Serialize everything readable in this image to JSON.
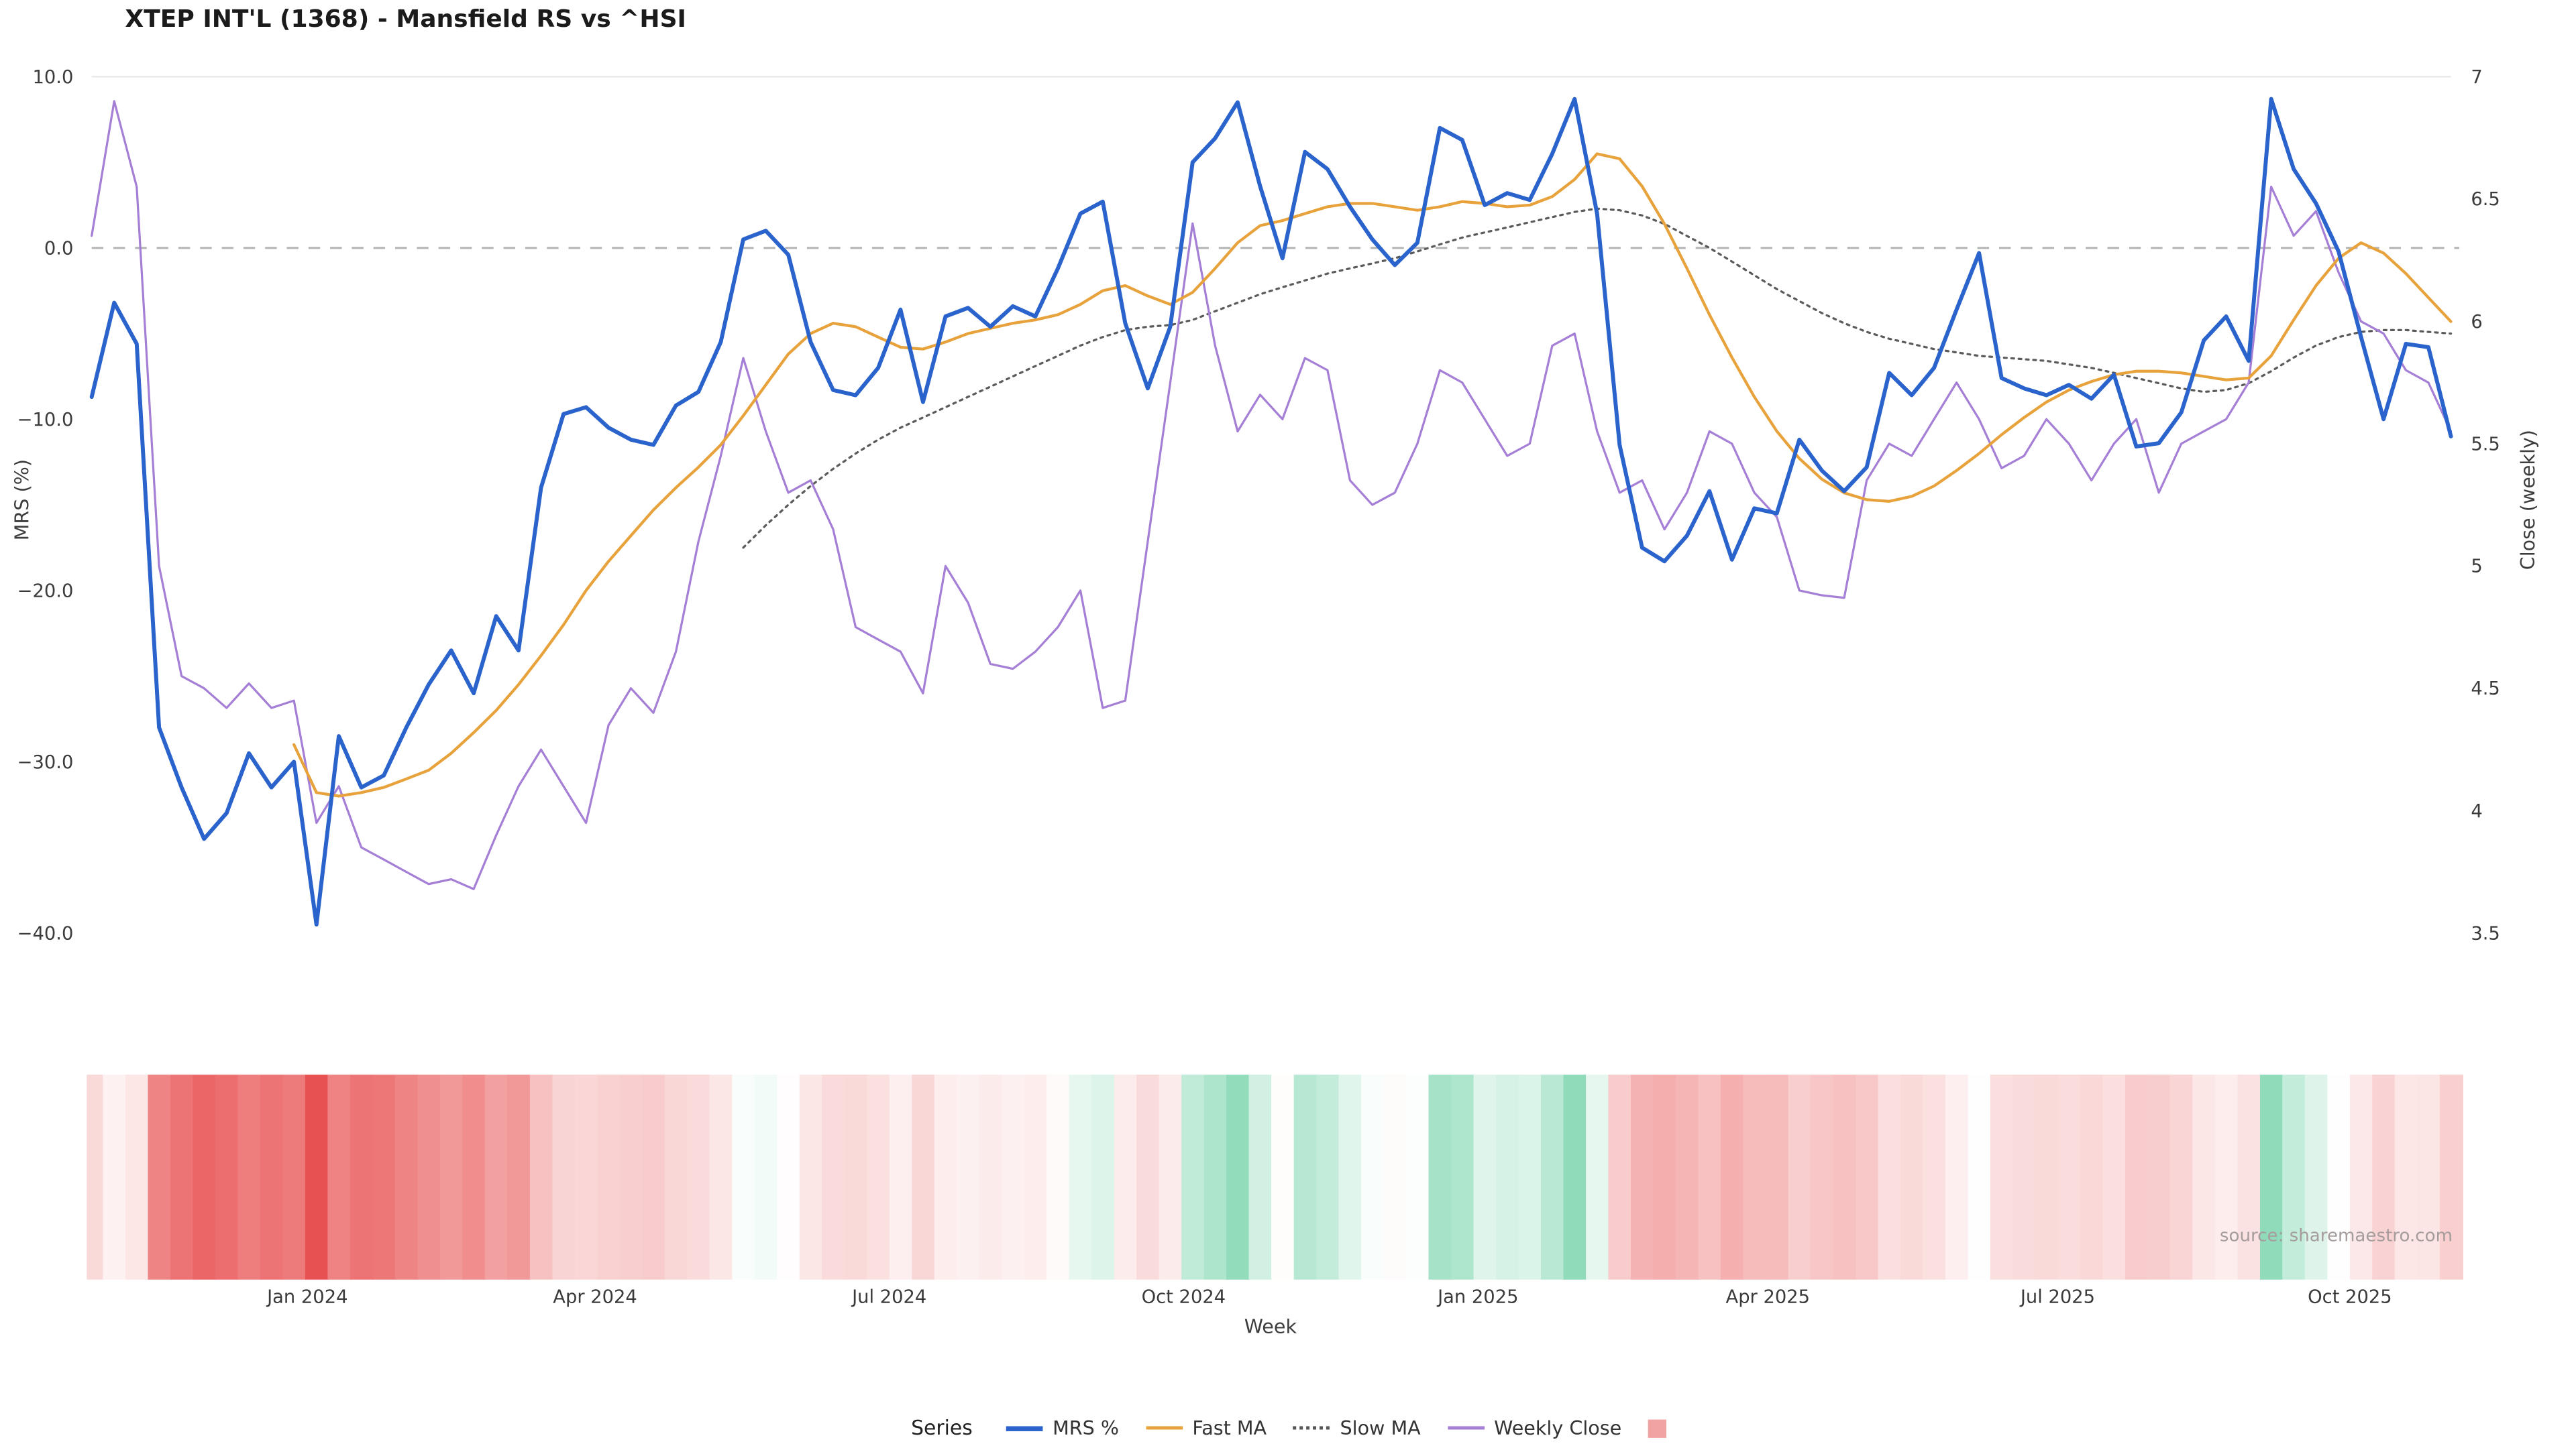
{
  "chart": {
    "title": "XTEP INT'L (1368) - Mansfield RS vs ^HSI",
    "x_label": "Week",
    "y_left_label": "MRS (%)",
    "y_right_label": "Close (weekly)",
    "source": "source: sharemaestro.com",
    "legend_title": "Series"
  },
  "chart_data": {
    "type": "line",
    "n_weeks": 106,
    "x_axis": {
      "label": "Week",
      "ticks": [
        {
          "week": 9.6,
          "label": "Jan 2024"
        },
        {
          "week": 22.4,
          "label": "Apr 2024"
        },
        {
          "week": 35.5,
          "label": "Jul 2024"
        },
        {
          "week": 48.6,
          "label": "Oct 2024"
        },
        {
          "week": 61.7,
          "label": "Jan 2025"
        },
        {
          "week": 74.6,
          "label": "Apr 2025"
        },
        {
          "week": 87.5,
          "label": "Jul 2025"
        },
        {
          "week": 100.5,
          "label": "Oct 2025"
        }
      ]
    },
    "y_left": {
      "label": "MRS (%)",
      "range": [
        -40,
        10
      ],
      "ticks": [
        {
          "value": 10,
          "label": "10.0"
        },
        {
          "value": 0,
          "label": "0.0"
        },
        {
          "value": -10,
          "label": "−10.0"
        },
        {
          "value": -20,
          "label": "−20.0"
        },
        {
          "value": -30,
          "label": "−30.0"
        },
        {
          "value": -40,
          "label": "−40.0"
        }
      ]
    },
    "y_right": {
      "label": "Close (weekly)",
      "range": [
        3.5,
        7
      ],
      "ticks": [
        {
          "value": 7,
          "label": "7"
        },
        {
          "value": 6.5,
          "label": "6.5"
        },
        {
          "value": 6,
          "label": "6"
        },
        {
          "value": 5.5,
          "label": "5.5"
        },
        {
          "value": 5,
          "label": "5"
        },
        {
          "value": 4.5,
          "label": "4.5"
        },
        {
          "value": 4,
          "label": "4"
        },
        {
          "value": 3.5,
          "label": "3.5"
        }
      ]
    },
    "zero_reference_line": 0,
    "series": [
      {
        "name": "MRS %",
        "axis": "left",
        "color": "#2a63cc",
        "width": 2.4,
        "values": [
          -8.7,
          -3.2,
          -5.6,
          -28.0,
          -31.5,
          -34.5,
          -33.0,
          -29.5,
          -31.5,
          -30.0,
          -39.5,
          -28.5,
          -31.5,
          -30.8,
          -28.0,
          -25.5,
          -23.5,
          -26.0,
          -21.5,
          -23.5,
          -14.0,
          -9.7,
          -9.3,
          -10.5,
          -11.2,
          -11.5,
          -9.2,
          -8.4,
          -5.5,
          0.5,
          1.0,
          -0.4,
          -5.5,
          -8.3,
          -8.6,
          -7.0,
          -3.6,
          -9.0,
          -4.0,
          -3.5,
          -4.6,
          -3.4,
          -4.0,
          -1.2,
          2.0,
          2.7,
          -4.4,
          -8.2,
          -4.6,
          5.0,
          6.4,
          8.5,
          3.6,
          -0.6,
          5.6,
          4.6,
          2.4,
          0.5,
          -1.0,
          0.3,
          7.0,
          6.3,
          2.5,
          3.2,
          2.8,
          5.5,
          8.7,
          2.0,
          -11.5,
          -17.5,
          -18.3,
          -16.8,
          -14.2,
          -18.2,
          -15.2,
          -15.5,
          -11.2,
          -13.0,
          -14.2,
          -12.8,
          -7.3,
          -8.6,
          -7.0,
          -3.6,
          -0.3,
          -7.6,
          -8.2,
          -8.6,
          -8.0,
          -8.8,
          -7.4,
          -11.6,
          -11.4,
          -9.6,
          -5.4,
          -4.0,
          -6.6,
          8.7,
          4.6,
          2.6,
          -0.2,
          -5.2,
          -10.0,
          -5.6,
          -5.8,
          -11.0
        ]
      },
      {
        "name": "Fast MA",
        "axis": "left",
        "color": "#e8a23c",
        "width": 1.7,
        "values": [
          null,
          null,
          null,
          null,
          null,
          null,
          null,
          null,
          null,
          -29.0,
          -31.8,
          -32.0,
          -31.8,
          -31.5,
          -31.0,
          -30.5,
          -29.5,
          -28.3,
          -27.0,
          -25.5,
          -23.8,
          -22.0,
          -20.0,
          -18.3,
          -16.8,
          -15.3,
          -14.0,
          -12.8,
          -11.5,
          -9.8,
          -8.0,
          -6.2,
          -5.0,
          -4.4,
          -4.6,
          -5.2,
          -5.8,
          -5.9,
          -5.5,
          -5.0,
          -4.7,
          -4.4,
          -4.2,
          -3.9,
          -3.3,
          -2.5,
          -2.2,
          -2.8,
          -3.3,
          -2.6,
          -1.2,
          0.3,
          1.3,
          1.6,
          2.0,
          2.4,
          2.6,
          2.6,
          2.4,
          2.2,
          2.4,
          2.7,
          2.6,
          2.4,
          2.5,
          3.0,
          4.0,
          5.5,
          5.2,
          3.6,
          1.4,
          -1.2,
          -3.9,
          -6.4,
          -8.7,
          -10.7,
          -12.3,
          -13.5,
          -14.3,
          -14.7,
          -14.8,
          -14.5,
          -13.9,
          -13.0,
          -12.0,
          -10.9,
          -9.9,
          -9.0,
          -8.3,
          -7.8,
          -7.4,
          -7.2,
          -7.2,
          -7.3,
          -7.5,
          -7.7,
          -7.6,
          -6.3,
          -4.2,
          -2.2,
          -0.6,
          0.3,
          -0.3,
          -1.5,
          -2.9,
          -4.3
        ]
      },
      {
        "name": "Slow MA",
        "axis": "left",
        "color": "#5b5b5b",
        "width": 1.3,
        "dash": "1.6 2.8",
        "values": [
          null,
          null,
          null,
          null,
          null,
          null,
          null,
          null,
          null,
          null,
          null,
          null,
          null,
          null,
          null,
          null,
          null,
          null,
          null,
          null,
          null,
          null,
          null,
          null,
          null,
          null,
          null,
          null,
          null,
          -17.5,
          -16.2,
          -15.0,
          -13.9,
          -12.9,
          -12.0,
          -11.2,
          -10.5,
          -9.9,
          -9.3,
          -8.7,
          -8.1,
          -7.5,
          -6.9,
          -6.3,
          -5.7,
          -5.2,
          -4.8,
          -4.6,
          -4.5,
          -4.2,
          -3.7,
          -3.2,
          -2.7,
          -2.3,
          -1.9,
          -1.5,
          -1.2,
          -0.9,
          -0.6,
          -0.2,
          0.2,
          0.6,
          0.9,
          1.2,
          1.5,
          1.8,
          2.1,
          2.3,
          2.2,
          1.9,
          1.4,
          0.7,
          0.0,
          -0.8,
          -1.6,
          -2.4,
          -3.1,
          -3.8,
          -4.4,
          -4.9,
          -5.3,
          -5.6,
          -5.9,
          -6.1,
          -6.3,
          -6.4,
          -6.5,
          -6.6,
          -6.8,
          -7.0,
          -7.3,
          -7.6,
          -7.9,
          -8.2,
          -8.4,
          -8.3,
          -7.9,
          -7.2,
          -6.4,
          -5.7,
          -5.2,
          -4.9,
          -4.8,
          -4.8,
          -4.9,
          -5.0
        ]
      },
      {
        "name": "Weekly Close",
        "axis": "right",
        "color": "#a57fd6",
        "width": 1.3,
        "values": [
          6.35,
          6.9,
          6.55,
          5.0,
          4.55,
          4.5,
          4.42,
          4.52,
          4.42,
          4.45,
          3.95,
          4.1,
          3.85,
          3.8,
          3.75,
          3.7,
          3.72,
          3.68,
          3.9,
          4.1,
          4.25,
          4.1,
          3.95,
          4.35,
          4.5,
          4.4,
          4.65,
          5.1,
          5.45,
          5.85,
          5.55,
          5.3,
          5.35,
          5.15,
          4.75,
          4.7,
          4.65,
          4.48,
          5.0,
          4.85,
          4.6,
          4.58,
          4.65,
          4.75,
          4.9,
          4.42,
          4.45,
          5.1,
          5.75,
          6.4,
          5.9,
          5.55,
          5.7,
          5.6,
          5.85,
          5.8,
          5.35,
          5.25,
          5.3,
          5.5,
          5.8,
          5.75,
          5.6,
          5.45,
          5.5,
          5.9,
          5.95,
          5.55,
          5.3,
          5.35,
          5.15,
          5.3,
          5.55,
          5.5,
          5.3,
          5.2,
          4.9,
          4.88,
          4.87,
          5.35,
          5.5,
          5.45,
          5.6,
          5.75,
          5.6,
          5.4,
          5.45,
          5.6,
          5.5,
          5.35,
          5.5,
          5.6,
          5.3,
          5.5,
          5.55,
          5.6,
          5.75,
          6.55,
          6.35,
          6.45,
          6.2,
          6.0,
          5.95,
          5.8,
          5.75,
          5.55
        ]
      }
    ],
    "heatmap": {
      "derived_from": "MRS %",
      "negative_color": "#e84f4f",
      "positive_color": "#7fd6b0",
      "neutral_color": "#ffffff",
      "negative_scale": 40,
      "positive_scale": 10
    }
  },
  "legend": {
    "items": [
      {
        "id": "mrs",
        "label": "MRS %",
        "swatch": "line",
        "color": "#2a63cc",
        "weight": 3
      },
      {
        "id": "fast-ma",
        "label": "Fast MA",
        "swatch": "line",
        "color": "#e8a23c",
        "weight": 2
      },
      {
        "id": "slow-ma",
        "label": "Slow MA",
        "swatch": "dotted-line",
        "color": "#555555",
        "weight": 2
      },
      {
        "id": "weekly-close",
        "label": "Weekly Close",
        "swatch": "line",
        "color": "#a57fd6",
        "weight": 2
      },
      {
        "id": "heatmap",
        "label": "",
        "swatch": "square",
        "color": "#f1a3a3",
        "weight": 0
      }
    ]
  }
}
